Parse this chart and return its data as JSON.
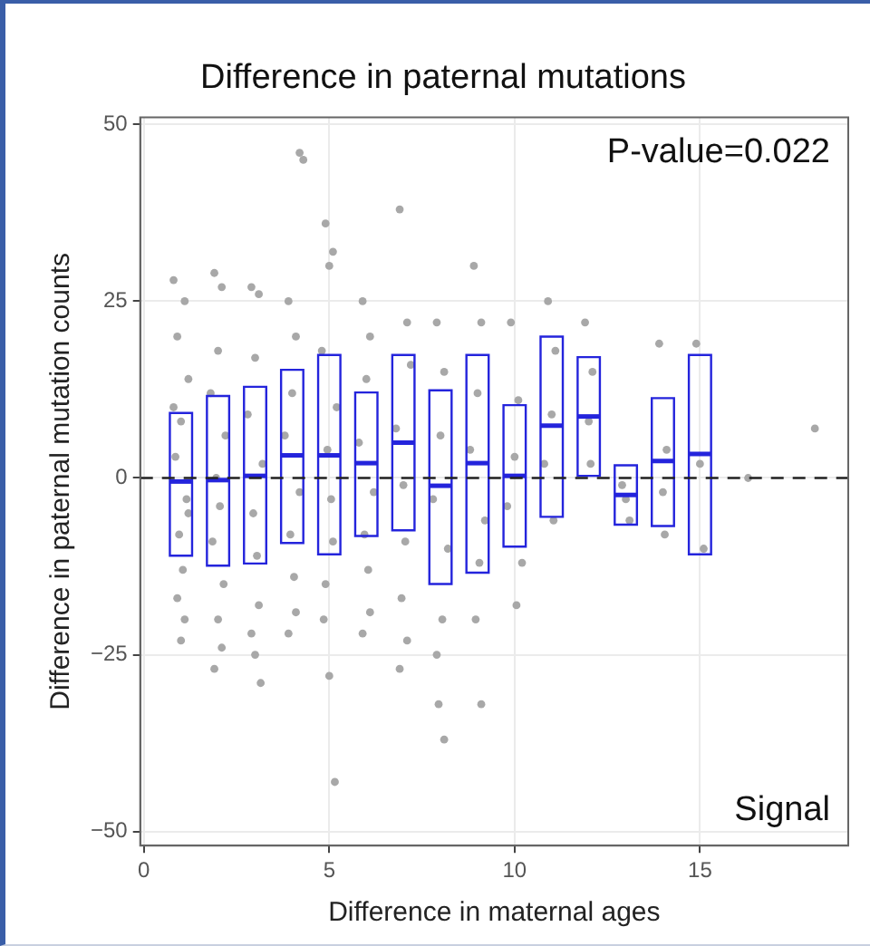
{
  "chart_data": {
    "type": "scatter",
    "title": "Difference in paternal mutations",
    "xlabel": "Difference in maternal ages",
    "ylabel": "Difference in paternal mutation counts",
    "annotations": [
      "P-value=0.022",
      "Signal"
    ],
    "xlim": [
      -0.1,
      19
    ],
    "ylim": [
      -52,
      51
    ],
    "xticks": [
      0,
      5,
      10,
      15
    ],
    "yticks": [
      -50,
      -25,
      0,
      25,
      50
    ],
    "grid": true,
    "legend": false,
    "ref_lines": [
      {
        "axis": "y",
        "value": 0,
        "color": "#222222",
        "line_style": "dashed"
      }
    ],
    "series": [
      {
        "color": "#a8a8a8",
        "marker": "circle",
        "x": [
          0.8,
          1.1,
          0.9,
          1.2,
          1,
          0.85,
          1.15,
          0.95,
          1.05,
          0.9,
          1.1,
          1,
          0.8,
          1.2,
          1.9,
          2.1,
          2,
          1.8,
          2.2,
          1.95,
          2.05,
          1.85,
          2.15,
          2,
          2.1,
          1.9,
          2.9,
          3.1,
          3,
          2.8,
          3.2,
          2.95,
          3.05,
          3.1,
          2.9,
          3,
          3.15,
          4.2,
          4.3,
          3.9,
          4.1,
          4,
          3.8,
          4.2,
          3.95,
          4.05,
          4.1,
          3.9,
          4.9,
          5.1,
          5,
          4.8,
          5.2,
          4.95,
          5.05,
          5.1,
          4.9,
          5,
          5.15,
          4.85,
          5.9,
          6.1,
          6,
          5.8,
          6.2,
          5.95,
          6.05,
          6.1,
          5.9,
          6.9,
          7.1,
          7.2,
          6.8,
          7,
          7.05,
          6.95,
          7.1,
          6.9,
          7.9,
          8.1,
          8,
          7.8,
          8.2,
          8.05,
          7.95,
          8.1,
          7.9,
          8.9,
          9.1,
          9,
          8.8,
          9.2,
          9.05,
          8.95,
          9.1,
          9.9,
          10.1,
          10,
          9.8,
          10.2,
          10.05,
          10.9,
          11.1,
          11,
          10.8,
          11.05,
          11.9,
          12.1,
          12,
          12.05,
          13,
          12.9,
          13.1,
          13.9,
          14.1,
          14,
          14.05,
          14.9,
          15,
          15.1,
          16.3,
          18.1
        ],
        "values": [
          28,
          25,
          20,
          14,
          8,
          3,
          -3,
          -8,
          -13,
          -17,
          -20,
          -23,
          10,
          -5,
          29,
          27,
          18,
          12,
          6,
          0,
          -4,
          -9,
          -15,
          -20,
          -24,
          -27,
          27,
          26,
          17,
          9,
          2,
          -5,
          -11,
          -18,
          -22,
          -25,
          -29,
          46,
          45,
          25,
          20,
          12,
          6,
          -2,
          -8,
          -14,
          -19,
          -22,
          36,
          32,
          30,
          18,
          10,
          4,
          -3,
          -9,
          -15,
          -28,
          -43,
          -20,
          25,
          20,
          14,
          5,
          -2,
          -8,
          -13,
          -19,
          -22,
          38,
          22,
          16,
          7,
          -1,
          -9,
          -17,
          -23,
          -27,
          22,
          15,
          6,
          -3,
          -10,
          -20,
          -32,
          -37,
          -25,
          30,
          22,
          12,
          4,
          -6,
          -12,
          -20,
          -32,
          22,
          11,
          3,
          -4,
          -12,
          -18,
          25,
          18,
          9,
          2,
          -6,
          22,
          15,
          8,
          2,
          -3,
          -1,
          -6,
          19,
          4,
          -2,
          -8,
          19,
          2,
          -10,
          0,
          7
        ]
      },
      {
        "type": "box",
        "color": "#2424dc",
        "x": [
          1,
          2,
          3,
          4,
          5,
          6,
          7,
          8,
          9,
          10,
          11,
          12,
          13,
          14,
          15
        ],
        "boxes": [
          {
            "low": -11,
            "q1": -11,
            "median": -0.5,
            "q3": 9.2,
            "high": 9.2
          },
          {
            "low": -12.4,
            "q1": -12.4,
            "median": -0.3,
            "q3": 11.6,
            "high": 11.6
          },
          {
            "low": -12.1,
            "q1": -12.1,
            "median": 0.3,
            "q3": 12.9,
            "high": 12.9
          },
          {
            "low": -9.2,
            "q1": -9.2,
            "median": 3.2,
            "q3": 15.3,
            "high": 15.3
          },
          {
            "low": -10.8,
            "q1": -10.8,
            "median": 3.2,
            "q3": 17.4,
            "high": 17.4
          },
          {
            "low": -8.2,
            "q1": -8.2,
            "median": 2.1,
            "q3": 12.1,
            "high": 12.1
          },
          {
            "low": -7.4,
            "q1": -7.4,
            "median": 5,
            "q3": 17.4,
            "high": 17.4
          },
          {
            "low": -15,
            "q1": -15,
            "median": -1.1,
            "q3": 12.4,
            "high": 12.4
          },
          {
            "low": -13.4,
            "q1": -13.4,
            "median": 2.1,
            "q3": 17.4,
            "high": 17.4
          },
          {
            "low": -9.7,
            "q1": -9.7,
            "median": 0.3,
            "q3": 10.3,
            "high": 10.3
          },
          {
            "low": -5.5,
            "q1": -5.5,
            "median": 7.4,
            "q3": 20,
            "high": 20
          },
          {
            "low": 0.3,
            "q1": 0.3,
            "median": 8.7,
            "q3": 17.1,
            "high": 17.1
          },
          {
            "low": -6.6,
            "q1": -6.6,
            "median": -2.4,
            "q3": 1.8,
            "high": 1.8
          },
          {
            "low": -6.8,
            "q1": -6.8,
            "median": 2.4,
            "q3": 11.3,
            "high": 11.3
          },
          {
            "low": -10.8,
            "q1": -10.8,
            "median": 3.4,
            "q3": 17.4,
            "high": 17.4
          }
        ]
      }
    ]
  }
}
